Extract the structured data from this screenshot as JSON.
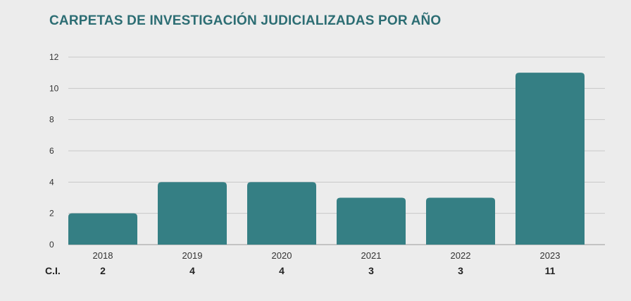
{
  "title": "CARPETAS DE INVESTIGACIÓN JUDICIALIZADAS POR AÑO",
  "row_label": "C.I.",
  "colors": {
    "bar": "#357f84",
    "title": "#2c6d73",
    "grid": "#c8c8c8",
    "background": "#ececec"
  },
  "chart_data": {
    "type": "bar",
    "title": "CARPETAS DE INVESTIGACIÓN JUDICIALIZADAS POR AÑO",
    "categories": [
      "2018",
      "2019",
      "2020",
      "2021",
      "2022",
      "2023"
    ],
    "values": [
      2,
      4,
      4,
      3,
      3,
      11
    ],
    "value_labels": [
      "2",
      "4",
      "4",
      "3",
      "3",
      "11"
    ],
    "yticks": [
      0,
      2,
      4,
      6,
      8,
      10,
      12
    ],
    "ylim": [
      0,
      12
    ],
    "grid": true,
    "xlabel": "",
    "ylabel": ""
  }
}
